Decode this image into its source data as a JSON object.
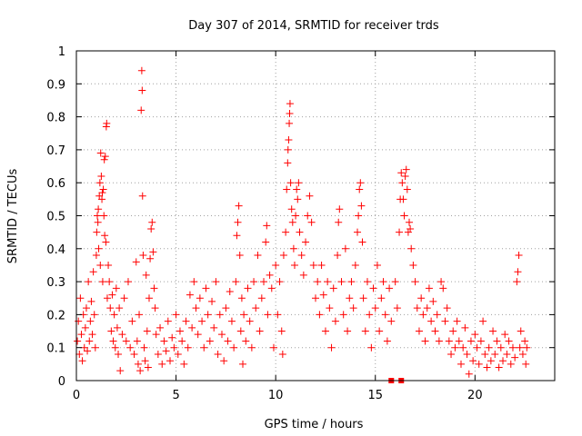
{
  "chart_data": {
    "type": "scatter",
    "title": "Day 307 of 2014, SRMTID for receiver trds",
    "xlabel": "GPS time / hours",
    "ylabel": "SRMTID / TECUs",
    "xlim": [
      0,
      24
    ],
    "ylim": [
      0,
      1
    ],
    "xticks": [
      0,
      5,
      10,
      15,
      20
    ],
    "yticks": [
      0,
      0.1,
      0.2,
      0.3,
      0.4,
      0.5,
      0.6,
      0.7,
      0.8,
      0.9,
      1
    ],
    "grid": true,
    "marker": "plus",
    "color": "#ff0000",
    "points": [
      [
        0.05,
        0.12
      ],
      [
        0.1,
        0.18
      ],
      [
        0.15,
        0.08
      ],
      [
        0.2,
        0.25
      ],
      [
        0.25,
        0.14
      ],
      [
        0.3,
        0.06
      ],
      [
        0.35,
        0.2
      ],
      [
        0.4,
        0.1
      ],
      [
        0.45,
        0.16
      ],
      [
        0.5,
        0.22
      ],
      [
        0.55,
        0.09
      ],
      [
        0.6,
        0.3
      ],
      [
        0.65,
        0.12
      ],
      [
        0.7,
        0.18
      ],
      [
        0.75,
        0.24
      ],
      [
        0.8,
        0.14
      ],
      [
        0.85,
        0.33
      ],
      [
        0.9,
        0.2
      ],
      [
        0.95,
        0.1
      ],
      [
        1.0,
        0.38
      ],
      [
        1.02,
        0.45
      ],
      [
        1.05,
        0.5
      ],
      [
        1.08,
        0.48
      ],
      [
        1.1,
        0.52
      ],
      [
        1.12,
        0.4
      ],
      [
        1.15,
        0.56
      ],
      [
        1.18,
        0.6
      ],
      [
        1.2,
        0.35
      ],
      [
        1.22,
        0.69
      ],
      [
        1.25,
        0.62
      ],
      [
        1.28,
        0.55
      ],
      [
        1.3,
        0.57
      ],
      [
        1.32,
        0.3
      ],
      [
        1.35,
        0.58
      ],
      [
        1.38,
        0.5
      ],
      [
        1.4,
        0.67
      ],
      [
        1.42,
        0.44
      ],
      [
        1.45,
        0.68
      ],
      [
        1.48,
        0.42
      ],
      [
        1.5,
        0.77
      ],
      [
        1.52,
        0.78
      ],
      [
        1.55,
        0.25
      ],
      [
        1.6,
        0.35
      ],
      [
        1.65,
        0.3
      ],
      [
        1.7,
        0.22
      ],
      [
        1.75,
        0.15
      ],
      [
        1.8,
        0.26
      ],
      [
        1.85,
        0.12
      ],
      [
        1.9,
        0.2
      ],
      [
        1.95,
        0.1
      ],
      [
        2.0,
        0.28
      ],
      [
        2.05,
        0.16
      ],
      [
        2.1,
        0.08
      ],
      [
        2.15,
        0.22
      ],
      [
        2.2,
        0.03
      ],
      [
        2.3,
        0.14
      ],
      [
        2.4,
        0.25
      ],
      [
        2.5,
        0.12
      ],
      [
        2.6,
        0.3
      ],
      [
        2.7,
        0.1
      ],
      [
        2.8,
        0.18
      ],
      [
        2.9,
        0.08
      ],
      [
        3.0,
        0.36
      ],
      [
        3.05,
        0.12
      ],
      [
        3.1,
        0.05
      ],
      [
        3.15,
        0.2
      ],
      [
        3.2,
        0.03
      ],
      [
        3.25,
        0.82
      ],
      [
        3.28,
        0.94
      ],
      [
        3.3,
        0.88
      ],
      [
        3.32,
        0.56
      ],
      [
        3.35,
        0.38
      ],
      [
        3.4,
        0.1
      ],
      [
        3.45,
        0.06
      ],
      [
        3.5,
        0.32
      ],
      [
        3.55,
        0.15
      ],
      [
        3.6,
        0.04
      ],
      [
        3.65,
        0.25
      ],
      [
        3.7,
        0.37
      ],
      [
        3.75,
        0.46
      ],
      [
        3.8,
        0.48
      ],
      [
        3.85,
        0.39
      ],
      [
        3.9,
        0.28
      ],
      [
        3.95,
        0.22
      ],
      [
        4.0,
        0.14
      ],
      [
        4.1,
        0.08
      ],
      [
        4.2,
        0.16
      ],
      [
        4.3,
        0.05
      ],
      [
        4.4,
        0.12
      ],
      [
        4.5,
        0.09
      ],
      [
        4.6,
        0.18
      ],
      [
        4.7,
        0.06
      ],
      [
        4.8,
        0.13
      ],
      [
        4.9,
        0.1
      ],
      [
        5.0,
        0.2
      ],
      [
        5.1,
        0.08
      ],
      [
        5.2,
        0.15
      ],
      [
        5.3,
        0.12
      ],
      [
        5.4,
        0.05
      ],
      [
        5.5,
        0.18
      ],
      [
        5.6,
        0.1
      ],
      [
        5.7,
        0.26
      ],
      [
        5.8,
        0.16
      ],
      [
        5.9,
        0.3
      ],
      [
        6.0,
        0.22
      ],
      [
        6.1,
        0.14
      ],
      [
        6.2,
        0.25
      ],
      [
        6.3,
        0.18
      ],
      [
        6.4,
        0.1
      ],
      [
        6.5,
        0.28
      ],
      [
        6.6,
        0.2
      ],
      [
        6.7,
        0.12
      ],
      [
        6.8,
        0.24
      ],
      [
        6.9,
        0.16
      ],
      [
        7.0,
        0.3
      ],
      [
        7.1,
        0.08
      ],
      [
        7.2,
        0.2
      ],
      [
        7.3,
        0.14
      ],
      [
        7.4,
        0.06
      ],
      [
        7.5,
        0.22
      ],
      [
        7.6,
        0.12
      ],
      [
        7.7,
        0.27
      ],
      [
        7.8,
        0.18
      ],
      [
        7.9,
        0.1
      ],
      [
        8.0,
        0.3
      ],
      [
        8.05,
        0.44
      ],
      [
        8.1,
        0.48
      ],
      [
        8.15,
        0.53
      ],
      [
        8.2,
        0.38
      ],
      [
        8.25,
        0.15
      ],
      [
        8.3,
        0.25
      ],
      [
        8.35,
        0.05
      ],
      [
        8.4,
        0.2
      ],
      [
        8.5,
        0.12
      ],
      [
        8.6,
        0.28
      ],
      [
        8.7,
        0.18
      ],
      [
        8.8,
        0.1
      ],
      [
        8.9,
        0.3
      ],
      [
        9.0,
        0.22
      ],
      [
        9.1,
        0.38
      ],
      [
        9.2,
        0.15
      ],
      [
        9.3,
        0.25
      ],
      [
        9.4,
        0.3
      ],
      [
        9.5,
        0.42
      ],
      [
        9.55,
        0.47
      ],
      [
        9.6,
        0.2
      ],
      [
        9.7,
        0.32
      ],
      [
        9.8,
        0.28
      ],
      [
        9.9,
        0.1
      ],
      [
        10.0,
        0.35
      ],
      [
        10.1,
        0.2
      ],
      [
        10.2,
        0.3
      ],
      [
        10.3,
        0.15
      ],
      [
        10.35,
        0.08
      ],
      [
        10.4,
        0.38
      ],
      [
        10.5,
        0.45
      ],
      [
        10.55,
        0.58
      ],
      [
        10.6,
        0.66
      ],
      [
        10.62,
        0.7
      ],
      [
        10.65,
        0.73
      ],
      [
        10.68,
        0.78
      ],
      [
        10.7,
        0.81
      ],
      [
        10.72,
        0.84
      ],
      [
        10.75,
        0.6
      ],
      [
        10.8,
        0.52
      ],
      [
        10.85,
        0.48
      ],
      [
        10.9,
        0.4
      ],
      [
        10.95,
        0.35
      ],
      [
        11.0,
        0.5
      ],
      [
        11.05,
        0.58
      ],
      [
        11.1,
        0.55
      ],
      [
        11.15,
        0.6
      ],
      [
        11.2,
        0.45
      ],
      [
        11.3,
        0.38
      ],
      [
        11.4,
        0.32
      ],
      [
        11.5,
        0.42
      ],
      [
        11.6,
        0.5
      ],
      [
        11.7,
        0.56
      ],
      [
        11.8,
        0.48
      ],
      [
        11.9,
        0.35
      ],
      [
        12.0,
        0.25
      ],
      [
        12.1,
        0.3
      ],
      [
        12.2,
        0.2
      ],
      [
        12.3,
        0.35
      ],
      [
        12.4,
        0.26
      ],
      [
        12.5,
        0.15
      ],
      [
        12.6,
        0.3
      ],
      [
        12.7,
        0.22
      ],
      [
        12.8,
        0.1
      ],
      [
        12.9,
        0.28
      ],
      [
        13.0,
        0.18
      ],
      [
        13.1,
        0.38
      ],
      [
        13.15,
        0.48
      ],
      [
        13.2,
        0.52
      ],
      [
        13.3,
        0.3
      ],
      [
        13.4,
        0.2
      ],
      [
        13.5,
        0.4
      ],
      [
        13.6,
        0.15
      ],
      [
        13.7,
        0.25
      ],
      [
        13.8,
        0.3
      ],
      [
        13.9,
        0.22
      ],
      [
        14.0,
        0.35
      ],
      [
        14.1,
        0.45
      ],
      [
        14.15,
        0.5
      ],
      [
        14.2,
        0.58
      ],
      [
        14.25,
        0.6
      ],
      [
        14.3,
        0.53
      ],
      [
        14.35,
        0.42
      ],
      [
        14.4,
        0.25
      ],
      [
        14.5,
        0.15
      ],
      [
        14.6,
        0.3
      ],
      [
        14.7,
        0.2
      ],
      [
        14.8,
        0.1
      ],
      [
        14.9,
        0.28
      ],
      [
        15.0,
        0.22
      ],
      [
        15.1,
        0.35
      ],
      [
        15.2,
        0.15
      ],
      [
        15.3,
        0.25
      ],
      [
        15.4,
        0.3
      ],
      [
        15.5,
        0.2
      ],
      [
        15.6,
        0.12
      ],
      [
        15.7,
        0.28
      ],
      [
        15.8,
        0.18
      ],
      [
        16.0,
        0.3
      ],
      [
        16.1,
        0.22
      ],
      [
        16.2,
        0.45
      ],
      [
        16.25,
        0.55
      ],
      [
        16.3,
        0.63
      ],
      [
        16.35,
        0.6
      ],
      [
        16.4,
        0.55
      ],
      [
        16.45,
        0.5
      ],
      [
        16.5,
        0.62
      ],
      [
        16.55,
        0.64
      ],
      [
        16.6,
        0.58
      ],
      [
        16.65,
        0.45
      ],
      [
        16.7,
        0.48
      ],
      [
        16.75,
        0.46
      ],
      [
        16.8,
        0.4
      ],
      [
        16.9,
        0.35
      ],
      [
        17.0,
        0.3
      ],
      [
        17.1,
        0.22
      ],
      [
        17.2,
        0.15
      ],
      [
        17.3,
        0.25
      ],
      [
        17.4,
        0.2
      ],
      [
        17.5,
        0.12
      ],
      [
        17.6,
        0.22
      ],
      [
        17.7,
        0.28
      ],
      [
        17.8,
        0.18
      ],
      [
        17.9,
        0.24
      ],
      [
        18.0,
        0.15
      ],
      [
        18.1,
        0.2
      ],
      [
        18.2,
        0.12
      ],
      [
        18.3,
        0.3
      ],
      [
        18.4,
        0.28
      ],
      [
        18.5,
        0.18
      ],
      [
        18.6,
        0.22
      ],
      [
        18.7,
        0.12
      ],
      [
        18.8,
        0.08
      ],
      [
        18.9,
        0.15
      ],
      [
        19.0,
        0.1
      ],
      [
        19.1,
        0.18
      ],
      [
        19.2,
        0.12
      ],
      [
        19.3,
        0.05
      ],
      [
        19.4,
        0.1
      ],
      [
        19.5,
        0.16
      ],
      [
        19.6,
        0.08
      ],
      [
        19.7,
        0.02
      ],
      [
        19.8,
        0.12
      ],
      [
        19.9,
        0.06
      ],
      [
        20.0,
        0.14
      ],
      [
        20.1,
        0.1
      ],
      [
        20.2,
        0.05
      ],
      [
        20.3,
        0.12
      ],
      [
        20.4,
        0.18
      ],
      [
        20.5,
        0.08
      ],
      [
        20.6,
        0.04
      ],
      [
        20.7,
        0.1
      ],
      [
        20.8,
        0.06
      ],
      [
        20.9,
        0.15
      ],
      [
        21.0,
        0.08
      ],
      [
        21.1,
        0.12
      ],
      [
        21.2,
        0.04
      ],
      [
        21.3,
        0.1
      ],
      [
        21.4,
        0.06
      ],
      [
        21.5,
        0.14
      ],
      [
        21.6,
        0.08
      ],
      [
        21.7,
        0.12
      ],
      [
        21.8,
        0.05
      ],
      [
        21.9,
        0.1
      ],
      [
        22.0,
        0.07
      ],
      [
        22.1,
        0.3
      ],
      [
        22.15,
        0.33
      ],
      [
        22.2,
        0.38
      ],
      [
        22.25,
        0.1
      ],
      [
        22.3,
        0.15
      ],
      [
        22.4,
        0.08
      ],
      [
        22.5,
        0.12
      ],
      [
        22.55,
        0.05
      ],
      [
        22.6,
        0.1
      ]
    ],
    "low_points": [
      [
        15.8,
        0.0
      ],
      [
        16.3,
        0.0
      ]
    ]
  }
}
